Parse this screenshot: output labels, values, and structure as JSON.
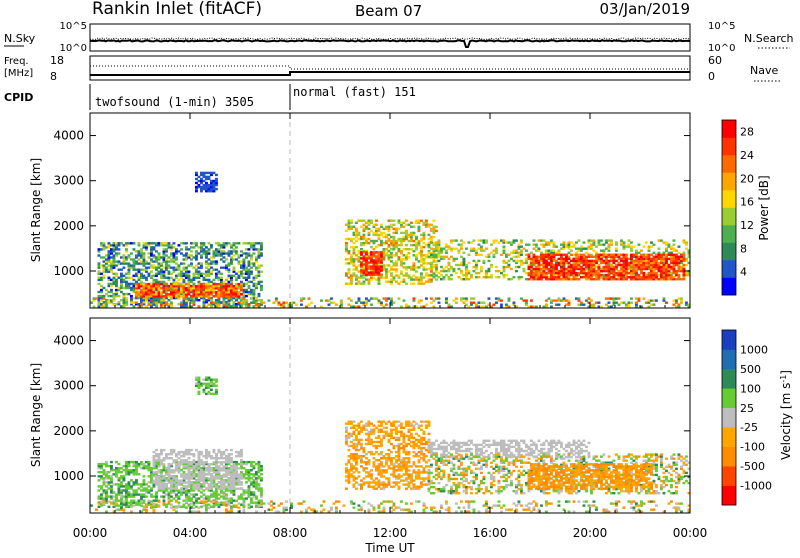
{
  "header": {
    "station": "Rankin Inlet (fitACF)",
    "beam": "Beam 07",
    "date": "03/Jan/2019"
  },
  "status_panels": {
    "nsky_label": "N.Sky",
    "nsearch_label": "N.Search",
    "freq_label_line1": "Freq.",
    "freq_label_line2": "[MHz]",
    "nave_label": "Nave",
    "cpid_label": "CPID",
    "nsky_ticks": [
      "10^5",
      "10^0"
    ],
    "nsearch_ticks": [
      "10^5",
      "10^0"
    ],
    "freq_ticks": [
      "18",
      "8"
    ],
    "nave_ticks": [
      "60",
      "0"
    ]
  },
  "cpid": {
    "modes": [
      {
        "label": "twofsound (1-min) 3505",
        "start_hour": 0
      },
      {
        "label": "normal (fast) 151",
        "start_hour": 8
      }
    ]
  },
  "chart_data": [
    {
      "type": "heatmap",
      "title": "",
      "xlabel": "Time UT",
      "ylabel": "Slant Range [km]",
      "x_ticks": [
        "00:00",
        "04:00",
        "08:00",
        "12:00",
        "16:00",
        "20:00",
        "00:00"
      ],
      "y_ticks": [
        "1000",
        "2000",
        "3000",
        "4000"
      ],
      "xlim_hours": [
        0,
        24
      ],
      "ylim_km": [
        180,
        4500
      ],
      "colorbar": {
        "label": "Power [dB]",
        "ticks": [
          "4",
          "8",
          "12",
          "16",
          "20",
          "24",
          "28"
        ],
        "range": [
          0,
          30
        ],
        "colors": [
          "#0000ff",
          "#2255c8",
          "#2e8b57",
          "#4caf50",
          "#9acd32",
          "#ffd700",
          "#ffa500",
          "#ff6a00",
          "#ff3300",
          "#ff0000"
        ]
      },
      "regions": [
        {
          "t0": 0.3,
          "t1": 6.8,
          "r0": 200,
          "r1": 1600,
          "v0": 2,
          "v1": 16,
          "density": 0.5
        },
        {
          "t0": 1.8,
          "t1": 6.0,
          "r0": 420,
          "r1": 720,
          "v0": 16,
          "v1": 30,
          "density": 0.85
        },
        {
          "t0": 4.2,
          "t1": 5.0,
          "r0": 2750,
          "r1": 3200,
          "v0": 2,
          "v1": 6,
          "density": 0.6
        },
        {
          "t0": 10.2,
          "t1": 13.8,
          "r0": 700,
          "r1": 2100,
          "v0": 10,
          "v1": 22,
          "density": 0.45
        },
        {
          "t0": 10.8,
          "t1": 11.6,
          "r0": 900,
          "r1": 1400,
          "v0": 22,
          "v1": 30,
          "density": 0.85
        },
        {
          "t0": 13.5,
          "t1": 24.0,
          "r0": 800,
          "r1": 1700,
          "v0": 8,
          "v1": 20,
          "density": 0.35
        },
        {
          "t0": 17.5,
          "t1": 23.8,
          "r0": 800,
          "r1": 1350,
          "v0": 20,
          "v1": 30,
          "density": 0.8
        },
        {
          "t0": 0.0,
          "t1": 24.0,
          "r0": 190,
          "r1": 400,
          "v0": 4,
          "v1": 26,
          "density": 0.3
        }
      ]
    },
    {
      "type": "heatmap",
      "title": "",
      "xlabel": "Time UT",
      "ylabel": "Slant Range [km]",
      "x_ticks": [
        "00:00",
        "04:00",
        "08:00",
        "12:00",
        "16:00",
        "20:00",
        "00:00"
      ],
      "y_ticks": [
        "1000",
        "2000",
        "3000",
        "4000"
      ],
      "xlim_hours": [
        0,
        24
      ],
      "ylim_km": [
        180,
        4500
      ],
      "colorbar": {
        "label": "Velocity [m s^-1]",
        "ticks": [
          "1000",
          "500",
          "100",
          "25",
          "-25",
          "-100",
          "-500",
          "-1000"
        ],
        "range": [
          -1200,
          1200
        ],
        "colors": [
          "#ff0000",
          "#ff4500",
          "#ff8c00",
          "#ffa500",
          "#bdbdbd",
          "#66cc33",
          "#2e8b57",
          "#1e6fb0",
          "#1a3fbf"
        ]
      },
      "regions": [
        {
          "t0": 0.3,
          "t1": 6.8,
          "r0": 300,
          "r1": 1300,
          "v0": 100,
          "v1": 500,
          "density": 0.55
        },
        {
          "t0": 2.5,
          "t1": 6.0,
          "r0": 700,
          "r1": 1600,
          "v0": -20,
          "v1": 20,
          "density": 0.55
        },
        {
          "t0": 4.2,
          "t1": 5.0,
          "r0": 2800,
          "r1": 3200,
          "v0": 100,
          "v1": 500,
          "density": 0.6
        },
        {
          "t0": 10.2,
          "t1": 13.5,
          "r0": 700,
          "r1": 2200,
          "v0": -500,
          "v1": -100,
          "density": 0.5
        },
        {
          "t0": 13.5,
          "t1": 20.0,
          "r0": 1400,
          "r1": 1800,
          "v0": -20,
          "v1": 20,
          "density": 0.5
        },
        {
          "t0": 13.5,
          "t1": 24.0,
          "r0": 600,
          "r1": 1500,
          "v0": -500,
          "v1": 500,
          "density": 0.4
        },
        {
          "t0": 17.5,
          "t1": 22.5,
          "r0": 700,
          "r1": 1250,
          "v0": -600,
          "v1": -200,
          "density": 0.7
        },
        {
          "t0": 0.0,
          "t1": 24.0,
          "r0": 190,
          "r1": 450,
          "v0": -500,
          "v1": 500,
          "density": 0.25
        }
      ]
    }
  ]
}
